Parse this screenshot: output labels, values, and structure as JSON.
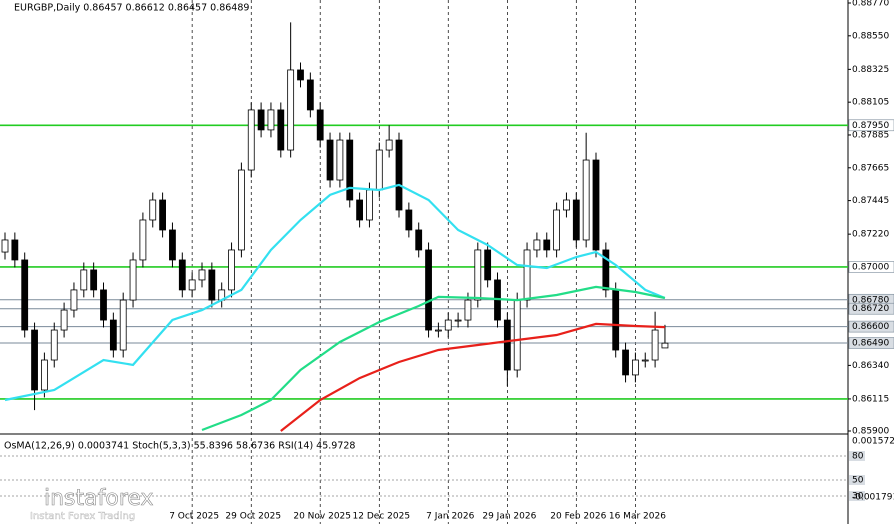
{
  "chart_data": {
    "type": "candlestick",
    "title": "EURGBP,Daily  0.86457 0.86612 0.86457 0.86489",
    "indicator_title": "OsMA(12,26,9) 0.0003741  Stoch(5,3,3) 55.8396 58.6736  RSI(14) 45.9728",
    "watermark": "instaforex",
    "watermark_sub": "Instant Forex Trading",
    "categories": [
      null,
      null,
      null,
      null,
      null,
      null,
      null,
      null,
      null,
      null,
      null,
      null,
      null,
      null,
      null,
      null,
      null,
      null,
      null,
      "7 Oct 2025",
      null,
      null,
      null,
      null,
      null,
      "29 Oct 2025",
      null,
      null,
      null,
      null,
      null,
      null,
      "20 Nov 2025",
      null,
      null,
      null,
      null,
      null,
      "12 Dec 2025",
      null,
      null,
      null,
      null,
      null,
      null,
      "7 Jan 2026",
      null,
      null,
      null,
      null,
      null,
      "29 Jan 2026",
      null,
      null,
      null,
      null,
      null,
      null,
      "20 Feb 2026",
      null,
      null,
      null,
      null,
      null,
      "16 Mar 2026",
      null,
      null,
      null
    ],
    "open": [
      0.871,
      0.87181,
      0.87047,
      0.86577,
      0.86175,
      0.86376,
      0.86577,
      0.86711,
      0.86846,
      0.8698,
      0.86846,
      0.86644,
      0.86443,
      0.86778,
      0.87047,
      0.87315,
      0.87449,
      0.87248,
      0.87047,
      0.86846,
      0.86913,
      0.8698,
      0.86778,
      0.86846,
      0.87114,
      0.8765,
      0.88053,
      0.87919,
      0.88053,
      0.87784,
      0.88321,
      0.88254,
      0.88053,
      0.87851,
      0.87583,
      0.87851,
      0.87449,
      0.87315,
      0.87516,
      0.87784,
      0.87851,
      0.87382,
      0.87248,
      0.87114,
      0.86577,
      0.86577,
      0.86644,
      0.86644,
      0.86778,
      0.87114,
      0.86913,
      0.86644,
      0.86309,
      0.86778,
      0.87114,
      0.87181,
      0.87114,
      0.87382,
      0.87449,
      0.87181,
      0.87717,
      0.87114,
      0.86846,
      0.86443,
      0.86276,
      0.86376,
      0.86376,
      0.86457
    ],
    "high": [
      0.87231,
      0.87231,
      0.87097,
      0.86627,
      0.86426,
      0.86627,
      0.86761,
      0.86896,
      0.8703,
      0.8703,
      0.86896,
      0.86694,
      0.86828,
      0.87097,
      0.87365,
      0.87499,
      0.87499,
      0.87298,
      0.87097,
      0.86963,
      0.8703,
      0.8703,
      0.86896,
      0.87164,
      0.877,
      0.88103,
      0.88103,
      0.88103,
      0.88103,
      0.8864,
      0.88371,
      0.88304,
      0.88103,
      0.87901,
      0.87901,
      0.87901,
      0.87499,
      0.87566,
      0.87834,
      0.8795,
      0.87901,
      0.87432,
      0.87298,
      0.87164,
      0.86627,
      0.86694,
      0.86694,
      0.86828,
      0.87164,
      0.87164,
      0.86963,
      0.86694,
      0.86828,
      0.87164,
      0.87231,
      0.87231,
      0.87432,
      0.87499,
      0.87499,
      0.879,
      0.87767,
      0.87164,
      0.86896,
      0.86493,
      0.86426,
      0.86426,
      0.867,
      0.86612
    ],
    "low": [
      0.8705,
      0.86997,
      0.86527,
      0.8604,
      0.86125,
      0.86326,
      0.86527,
      0.86661,
      0.86796,
      0.86796,
      0.86594,
      0.86393,
      0.86393,
      0.86728,
      0.86997,
      0.87265,
      0.87198,
      0.86997,
      0.86796,
      0.86796,
      0.86863,
      0.86728,
      0.86728,
      0.86796,
      0.87064,
      0.876,
      0.87869,
      0.87869,
      0.87734,
      0.87734,
      0.88204,
      0.88003,
      0.87801,
      0.87533,
      0.87533,
      0.87399,
      0.87265,
      0.87265,
      0.87466,
      0.87734,
      0.87332,
      0.87198,
      0.87064,
      0.86527,
      0.86527,
      0.86527,
      0.86594,
      0.86594,
      0.86728,
      0.86863,
      0.86594,
      0.862,
      0.86259,
      0.86728,
      0.87064,
      0.87064,
      0.87064,
      0.87332,
      0.87131,
      0.87131,
      0.87064,
      0.86796,
      0.86393,
      0.86226,
      0.86226,
      0.86326,
      0.86326,
      0.86457
    ],
    "close": [
      0.87181,
      0.87047,
      0.86577,
      0.86175,
      0.86376,
      0.86577,
      0.86711,
      0.86846,
      0.8698,
      0.86846,
      0.86644,
      0.86443,
      0.86778,
      0.87047,
      0.87315,
      0.87449,
      0.87248,
      0.87047,
      0.86846,
      0.86913,
      0.8698,
      0.86778,
      0.86846,
      0.87114,
      0.8765,
      0.88053,
      0.87919,
      0.88053,
      0.87784,
      0.88321,
      0.88254,
      0.88053,
      0.87851,
      0.87583,
      0.87851,
      0.87449,
      0.87315,
      0.87516,
      0.87784,
      0.87851,
      0.87382,
      0.87248,
      0.87114,
      0.86577,
      0.86577,
      0.86644,
      0.86644,
      0.86778,
      0.87114,
      0.86913,
      0.86644,
      0.86309,
      0.86778,
      0.87114,
      0.87181,
      0.87114,
      0.87382,
      0.87449,
      0.87181,
      0.87717,
      0.87114,
      0.86846,
      0.86443,
      0.86276,
      0.86376,
      0.86376,
      0.86577,
      0.86489
    ],
    "moving_averages": [
      {
        "color": "#33e0f0",
        "x": [
          0,
          5,
          10,
          13,
          17,
          20,
          24,
          27,
          30,
          33,
          35,
          38,
          40,
          43,
          46,
          49,
          52,
          55,
          58,
          60,
          62,
          65,
          67
        ],
        "values": [
          0.86108,
          0.86175,
          0.86376,
          0.86343,
          0.86644,
          0.86711,
          0.86846,
          0.87114,
          0.87315,
          0.87483,
          0.8753,
          0.87516,
          0.8755,
          0.87449,
          0.87248,
          0.87147,
          0.87013,
          0.86993,
          0.87067,
          0.871,
          0.87013,
          0.86846,
          0.86792
        ]
      },
      {
        "color": "#22dd88",
        "x": [
          20,
          24,
          27,
          30,
          34,
          38,
          42,
          44,
          48,
          52,
          56,
          60,
          64,
          67
        ],
        "values": [
          0.85907,
          0.86007,
          0.86108,
          0.86309,
          0.86497,
          0.86631,
          0.86738,
          0.86799,
          0.86792,
          0.86778,
          0.86812,
          0.86866,
          0.86832,
          0.86792
        ]
      },
      {
        "color": "#e8201a",
        "x": [
          28,
          32,
          36,
          40,
          44,
          48,
          52,
          56,
          60,
          64,
          67
        ],
        "values": [
          0.859,
          0.86108,
          0.86255,
          0.86363,
          0.86443,
          0.86477,
          0.8651,
          0.86544,
          0.86618,
          0.86604,
          0.86597
        ]
      }
    ],
    "levels": [
      {
        "value": 0.8795,
        "label": "0.87950",
        "color": "#22cc22"
      },
      {
        "value": 0.87,
        "label": "0.87000",
        "color": "#22cc22"
      },
      {
        "value": 0.8678,
        "label": "0.86780",
        "color": "#7a8a99"
      },
      {
        "value": 0.8672,
        "label": "0.86720",
        "color": "#7a8a99"
      },
      {
        "value": 0.866,
        "label": "0.86600",
        "color": "#7a8a99"
      },
      {
        "value": 0.8649,
        "label": "0.86490",
        "color": "#7a8a99"
      },
      {
        "value": 0.86115,
        "color": "#22cc22"
      }
    ],
    "ylim": [
      0.859,
      0.8877
    ],
    "yticks": [
      {
        "value": 0.8877,
        "label": "0.88770"
      },
      {
        "value": 0.8855,
        "label": "0.88550"
      },
      0.88325,
      0.88105,
      0.87885,
      0.87665,
      0.87445,
      {
        "value": 0.8722,
        "label": "0.87220"
      },
      {
        "value": 0.8634,
        "label": "0.86340"
      },
      0.86115,
      {
        "value": 0.859,
        "label": "0.85900"
      }
    ],
    "sub_ylim": [
      0,
      100
    ],
    "sub_yticks": [
      80,
      50,
      30
    ],
    "osma_ylim": [
      -0.001791,
      0.0015725
    ],
    "bull_color": "#ffffff",
    "bear_color": "#000000",
    "grid": true
  }
}
